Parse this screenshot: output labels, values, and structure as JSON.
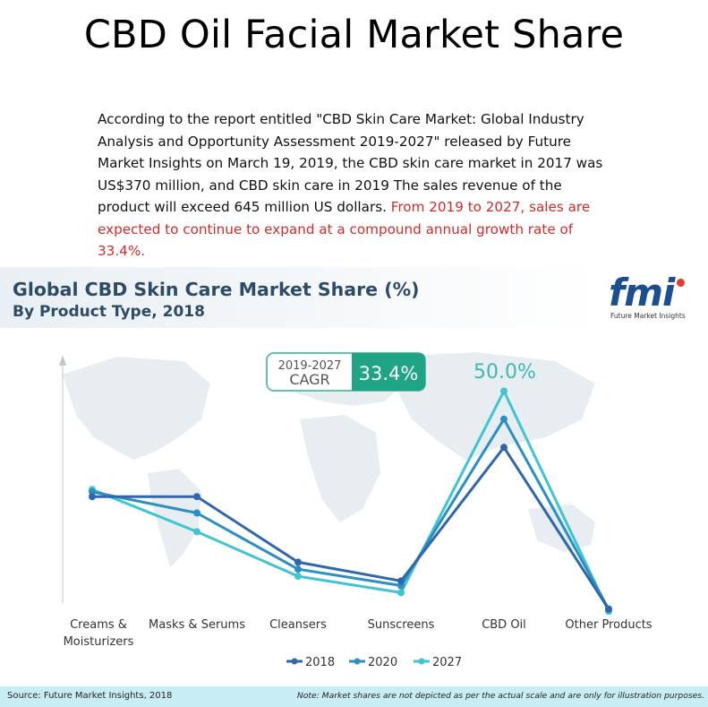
{
  "page_title": "CBD Oil Facial Market Share",
  "intro_text": "According to the report entitled \"CBD Skin Care Market: Global Industry Analysis and Opportunity Assessment 2019-2027\" released by Future Market Insights on March 19, 2019, the CBD skin care market in 2017 was US$370 million, and CBD skin care in 2019 The sales revenue of the product will exceed 645 million US dollars.",
  "intro_highlight": " From 2019 to 2027, sales are expected to continue to expand at a compound annual growth rate of 33.4%.",
  "infographic": {
    "title": "Global CBD Skin Care Market Share (%)",
    "subtitle": "By Product Type, 2018",
    "logo_text": "fmi",
    "logo_caption": "Future Market Insights",
    "source": "Source: Future Market Insights, 2018",
    "note": "Note: Market shares are not depicted as per the actual scale and are only for illustration purposes."
  },
  "chart_data": {
    "type": "line",
    "title": "Global CBD Skin Care Market Share (%)",
    "subtitle": "By Product Type, 2018",
    "categories": [
      "Creams &\nMoisturizers",
      "Masks & Serums",
      "Cleansers",
      "Sunscreens",
      "CBD Oil",
      "Other Products"
    ],
    "series": [
      {
        "name": "2018",
        "color": "#2f67ad",
        "values": [
          27.5,
          27.5,
          13.5,
          9.5,
          38.0,
          3.5
        ]
      },
      {
        "name": "2020",
        "color": "#2a8fc2",
        "values": [
          28.5,
          24.0,
          12.0,
          8.5,
          44.0,
          3.5
        ]
      },
      {
        "name": "2027",
        "color": "#3fc4d2",
        "values": [
          29.0,
          20.0,
          10.5,
          7.0,
          50.0,
          3.0
        ]
      }
    ],
    "ylim": [
      0,
      65
    ],
    "annotations": {
      "cagr_label": "2019-2027\nCAGR",
      "cagr_value": "33.4%",
      "peak_label": "50.0%"
    },
    "legend_placement": "bottom-center",
    "grid": false
  }
}
